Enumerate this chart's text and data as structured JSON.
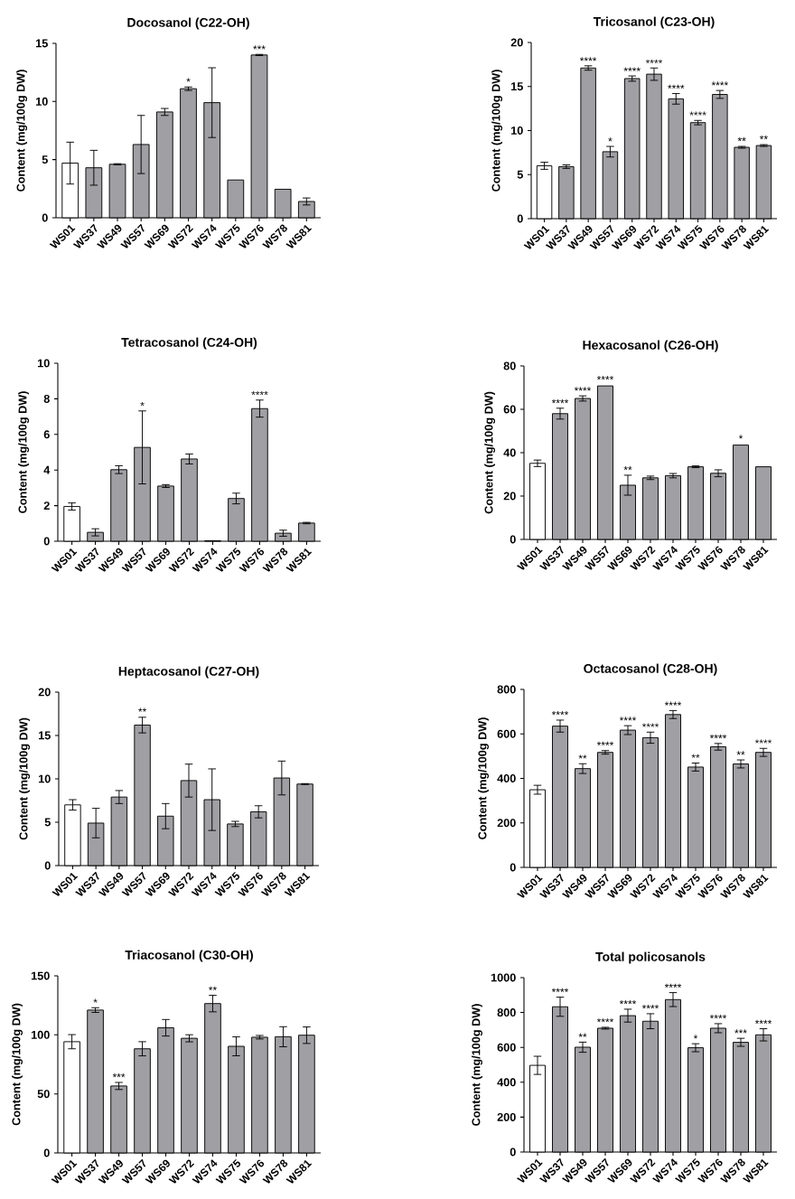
{
  "chart_data": [
    {
      "type": "bar",
      "title": "Docosanol (C22-OH)",
      "ylabel": "Content (mg/100g DW)",
      "categories": [
        "WS01",
        "WS37",
        "WS49",
        "WS57",
        "WS69",
        "WS72",
        "WS74",
        "WS75",
        "WS76",
        "WS78",
        "WS81"
      ],
      "values": [
        4.7,
        4.3,
        4.6,
        6.3,
        9.1,
        11.1,
        9.9,
        3.25,
        14.0,
        2.45,
        1.4
      ],
      "errors": [
        1.8,
        1.5,
        0.05,
        2.5,
        0.3,
        0.15,
        3.0,
        null,
        0.05,
        null,
        0.3
      ],
      "colors": [
        "#ffffff",
        "#a0a0a4",
        "#a0a0a4",
        "#a0a0a4",
        "#a0a0a4",
        "#a0a0a4",
        "#a0a0a4",
        "#a0a0a4",
        "#a0a0a4",
        "#a0a0a4",
        "#a0a0a4"
      ],
      "ylim": [
        0,
        15
      ],
      "yticks": [
        0,
        5,
        10,
        15
      ],
      "annotations": [
        {
          "text": "*",
          "x": "WS72",
          "y": 11.25
        },
        {
          "text": "***",
          "x": "WS76",
          "y": 14.05
        }
      ]
    },
    {
      "type": "bar",
      "title": "Tricosanol (C23-OH)",
      "ylabel": "Content (mg/100g DW)",
      "categories": [
        "WS01",
        "WS37",
        "WS49",
        "WS57",
        "WS69",
        "WS72",
        "WS74",
        "WS75",
        "WS76",
        "WS78",
        "WS81"
      ],
      "values": [
        6.0,
        5.9,
        17.1,
        7.6,
        15.9,
        16.4,
        13.6,
        10.9,
        14.1,
        8.1,
        8.3
      ],
      "errors": [
        0.4,
        0.2,
        0.25,
        0.6,
        0.3,
        0.7,
        0.6,
        0.25,
        0.45,
        0.1,
        0.1
      ],
      "colors": [
        "#ffffff",
        "#a0a0a4",
        "#a0a0a4",
        "#a0a0a4",
        "#a0a0a4",
        "#a0a0a4",
        "#a0a0a4",
        "#a0a0a4",
        "#a0a0a4",
        "#a0a0a4",
        "#a0a0a4"
      ],
      "ylim": [
        0,
        20
      ],
      "yticks": [
        0,
        5,
        10,
        15,
        20
      ],
      "annotations": [
        {
          "text": "****",
          "x": "WS49",
          "y": 17.32
        },
        {
          "text": "*",
          "x": "WS57",
          "y": 8.2
        },
        {
          "text": "****",
          "x": "WS69",
          "y": 16.17
        },
        {
          "text": "****",
          "x": "WS72",
          "y": 17.05
        },
        {
          "text": "****",
          "x": "WS74",
          "y": 14.2
        },
        {
          "text": "****",
          "x": "WS75",
          "y": 11.15
        },
        {
          "text": "****",
          "x": "WS76",
          "y": 14.55
        },
        {
          "text": "**",
          "x": "WS78",
          "y": 8.22
        },
        {
          "text": "**",
          "x": "WS81",
          "y": 8.43
        }
      ]
    },
    {
      "type": "bar",
      "title": "Tetracosanol (C24-OH)",
      "ylabel": "Content (mg/100g DW)",
      "categories": [
        "WS01",
        "WS37",
        "WS49",
        "WS57",
        "WS69",
        "WS72",
        "WS74",
        "WS75",
        "WS76",
        "WS78",
        "WS81"
      ],
      "values": [
        1.95,
        0.5,
        4.02,
        5.27,
        3.1,
        4.62,
        0.03,
        2.4,
        7.45,
        0.45,
        1.02
      ],
      "errors": [
        0.2,
        0.2,
        0.22,
        2.05,
        0.08,
        0.28,
        null,
        0.3,
        0.48,
        0.17,
        0.04
      ],
      "colors": [
        "#ffffff",
        "#a0a0a4",
        "#a0a0a4",
        "#a0a0a4",
        "#a0a0a4",
        "#a0a0a4",
        "#a0a0a4",
        "#a0a0a4",
        "#a0a0a4",
        "#a0a0a4",
        "#a0a0a4"
      ],
      "ylim": [
        0,
        10
      ],
      "yticks": [
        0,
        2,
        4,
        6,
        8,
        10
      ],
      "annotations": [
        {
          "text": "*",
          "x": "WS57",
          "y": 7.32
        },
        {
          "text": "****",
          "x": "WS76",
          "y": 7.93
        }
      ]
    },
    {
      "type": "bar",
      "title": "Hexacosanol (C26-OH)",
      "ylabel": "Content (mg/100g DW)",
      "categories": [
        "WS01",
        "WS37",
        "WS49",
        "WS57",
        "WS69",
        "WS72",
        "WS74",
        "WS75",
        "WS76",
        "WS78",
        "WS81"
      ],
      "values": [
        35.1,
        58,
        65,
        70.8,
        25,
        28.4,
        29.4,
        33.5,
        30.5,
        43.5,
        33.5
      ],
      "errors": [
        1.5,
        2.5,
        1.2,
        null,
        4.6,
        0.8,
        1,
        0.4,
        1.6,
        null,
        null
      ],
      "colors": [
        "#ffffff",
        "#a0a0a4",
        "#a0a0a4",
        "#a0a0a4",
        "#a0a0a4",
        "#a0a0a4",
        "#a0a0a4",
        "#a0a0a4",
        "#a0a0a4",
        "#a0a0a4",
        "#a0a0a4"
      ],
      "ylim": [
        0,
        80
      ],
      "yticks": [
        0,
        20,
        40,
        60,
        80
      ],
      "annotations": [
        {
          "text": "****",
          "x": "WS37",
          "y": 60.5
        },
        {
          "text": "****",
          "x": "WS49",
          "y": 66.2
        },
        {
          "text": "****",
          "x": "WS57",
          "y": 71.3
        },
        {
          "text": "**",
          "x": "WS69",
          "y": 29.6
        },
        {
          "text": "*",
          "x": "WS78",
          "y": 44.1
        }
      ]
    },
    {
      "type": "bar",
      "title": "Heptacosanol (C27-OH)",
      "ylabel": "Content (mg/100g DW)",
      "categories": [
        "WS01",
        "WS37",
        "WS49",
        "WS57",
        "WS69",
        "WS72",
        "WS74",
        "WS75",
        "WS76",
        "WS78",
        "WS81"
      ],
      "values": [
        7.0,
        4.9,
        7.9,
        16.2,
        5.7,
        9.8,
        7.6,
        4.8,
        6.2,
        10.1,
        9.4
      ],
      "errors": [
        0.6,
        1.7,
        0.75,
        0.9,
        1.45,
        1.9,
        3.55,
        0.3,
        0.7,
        1.95,
        0.05
      ],
      "colors": [
        "#ffffff",
        "#a0a0a4",
        "#a0a0a4",
        "#a0a0a4",
        "#a0a0a4",
        "#a0a0a4",
        "#a0a0a4",
        "#a0a0a4",
        "#a0a0a4",
        "#a0a0a4",
        "#a0a0a4"
      ],
      "ylim": [
        0,
        20
      ],
      "yticks": [
        0,
        5,
        10,
        15,
        20
      ],
      "annotations": [
        {
          "text": "**",
          "x": "WS57",
          "y": 17.14
        }
      ]
    },
    {
      "type": "bar",
      "title": "Octacosanol (C28-OH)",
      "ylabel": "Content (mg/100g DW)",
      "categories": [
        "WS01",
        "WS37",
        "WS49",
        "WS57",
        "WS69",
        "WS72",
        "WS74",
        "WS75",
        "WS76",
        "WS78",
        "WS81"
      ],
      "values": [
        349,
        635,
        444,
        517,
        617,
        583,
        687,
        451,
        542,
        465,
        517
      ],
      "errors": [
        20,
        27,
        22,
        8,
        20,
        25,
        18,
        18,
        15,
        18,
        18
      ],
      "colors": [
        "#ffffff",
        "#a0a0a4",
        "#a0a0a4",
        "#a0a0a4",
        "#a0a0a4",
        "#a0a0a4",
        "#a0a0a4",
        "#a0a0a4",
        "#a0a0a4",
        "#a0a0a4",
        "#a0a0a4"
      ],
      "ylim": [
        0,
        800
      ],
      "yticks": [
        0,
        200,
        400,
        600,
        800
      ],
      "annotations": [
        {
          "text": "****",
          "x": "WS37",
          "y": 662
        },
        {
          "text": "**",
          "x": "WS49",
          "y": 466
        },
        {
          "text": "****",
          "x": "WS57",
          "y": 525
        },
        {
          "text": "****",
          "x": "WS69",
          "y": 637
        },
        {
          "text": "****",
          "x": "WS72",
          "y": 608
        },
        {
          "text": "****",
          "x": "WS74",
          "y": 705
        },
        {
          "text": "**",
          "x": "WS75",
          "y": 469
        },
        {
          "text": "****",
          "x": "WS76",
          "y": 557
        },
        {
          "text": "**",
          "x": "WS78",
          "y": 483
        },
        {
          "text": "****",
          "x": "WS81",
          "y": 535
        }
      ]
    },
    {
      "type": "bar",
      "title": "Triacosanol (C30-OH)",
      "ylabel": "Content (mg/100g DW)",
      "categories": [
        "WS01",
        "WS37",
        "WS49",
        "WS57",
        "WS69",
        "WS72",
        "WS74",
        "WS75",
        "WS76",
        "WS78",
        "WS81"
      ],
      "values": [
        94.2,
        121,
        56.7,
        88.2,
        106,
        97.1,
        126.5,
        90.3,
        98,
        98.4,
        99.7
      ],
      "errors": [
        6,
        2,
        3,
        6,
        7,
        3,
        7,
        8,
        1.5,
        8.5,
        7
      ],
      "colors": [
        "#ffffff",
        "#a0a0a4",
        "#a0a0a4",
        "#a0a0a4",
        "#a0a0a4",
        "#a0a0a4",
        "#a0a0a4",
        "#a0a0a4",
        "#a0a0a4",
        "#a0a0a4",
        "#a0a0a4"
      ],
      "ylim": [
        0,
        150
      ],
      "yticks": [
        0,
        50,
        100,
        150
      ],
      "annotations": [
        {
          "text": "*",
          "x": "WS37",
          "y": 123
        },
        {
          "text": "***",
          "x": "WS49",
          "y": 59.7
        },
        {
          "text": "**",
          "x": "WS74",
          "y": 133.5
        }
      ]
    },
    {
      "type": "bar",
      "title": "Total policosanols",
      "ylabel": "Content (mg/100g DW)",
      "categories": [
        "WS01",
        "WS37",
        "WS49",
        "WS57",
        "WS69",
        "WS72",
        "WS74",
        "WS75",
        "WS76",
        "WS78",
        "WS81"
      ],
      "values": [
        497,
        833,
        601,
        710,
        782,
        750,
        874,
        598,
        710,
        629,
        672
      ],
      "errors": [
        52,
        55,
        29,
        5,
        37,
        43,
        40,
        23,
        26,
        23,
        35
      ],
      "colors": [
        "#ffffff",
        "#a0a0a4",
        "#a0a0a4",
        "#a0a0a4",
        "#a0a0a4",
        "#a0a0a4",
        "#a0a0a4",
        "#a0a0a4",
        "#a0a0a4",
        "#a0a0a4",
        "#a0a0a4"
      ],
      "ylim": [
        0,
        1000
      ],
      "yticks": [
        0,
        200,
        400,
        600,
        800,
        1000
      ],
      "annotations": [
        {
          "text": "****",
          "x": "WS37",
          "y": 888
        },
        {
          "text": "**",
          "x": "WS49",
          "y": 630
        },
        {
          "text": "****",
          "x": "WS57",
          "y": 715
        },
        {
          "text": "****",
          "x": "WS69",
          "y": 819
        },
        {
          "text": "****",
          "x": "WS72",
          "y": 793
        },
        {
          "text": "****",
          "x": "WS74",
          "y": 914
        },
        {
          "text": "*",
          "x": "WS75",
          "y": 621
        },
        {
          "text": "****",
          "x": "WS76",
          "y": 736
        },
        {
          "text": "***",
          "x": "WS78",
          "y": 652
        },
        {
          "text": "****",
          "x": "WS81",
          "y": 707
        }
      ]
    }
  ]
}
